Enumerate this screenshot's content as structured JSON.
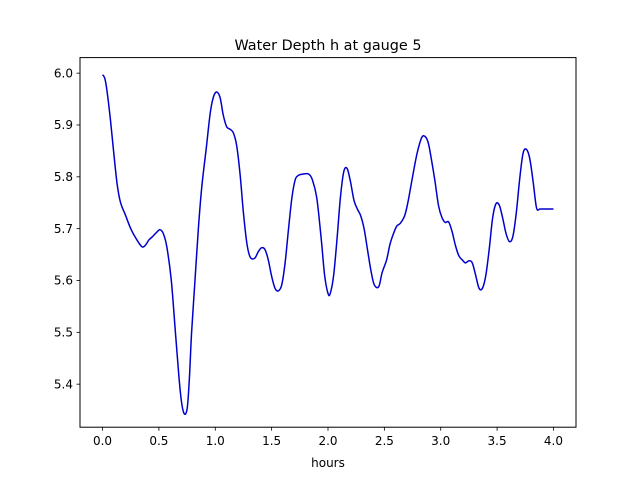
{
  "chart_data": {
    "type": "line",
    "title": "Water Depth h at gauge 5",
    "xlabel": "hours",
    "ylabel": "",
    "xlim": [
      -0.2,
      4.2
    ],
    "ylim": [
      5.317,
      6.03
    ],
    "xticks": [
      0.0,
      0.5,
      1.0,
      1.5,
      2.0,
      2.5,
      3.0,
      3.5,
      4.0
    ],
    "xtick_labels": [
      "0.0",
      "0.5",
      "1.0",
      "1.5",
      "2.0",
      "2.5",
      "3.0",
      "3.5",
      "4.0"
    ],
    "yticks": [
      5.4,
      5.5,
      5.6,
      5.7,
      5.8,
      5.9,
      6.0
    ],
    "ytick_labels": [
      "5.4",
      "5.5",
      "5.6",
      "5.7",
      "5.8",
      "5.9",
      "6.0"
    ],
    "grid": false,
    "series": [
      {
        "name": "",
        "color": "#0000cc",
        "x": [
          0.0,
          0.02,
          0.04,
          0.07,
          0.1,
          0.13,
          0.16,
          0.2,
          0.25,
          0.3,
          0.35,
          0.38,
          0.41,
          0.44,
          0.48,
          0.51,
          0.54,
          0.57,
          0.61,
          0.65,
          0.69,
          0.72,
          0.75,
          0.77,
          0.79,
          0.82,
          0.85,
          0.88,
          0.92,
          0.96,
          1.0,
          1.04,
          1.07,
          1.1,
          1.13,
          1.16,
          1.19,
          1.22,
          1.25,
          1.28,
          1.31,
          1.35,
          1.38,
          1.41,
          1.44,
          1.47,
          1.5,
          1.53,
          1.56,
          1.59,
          1.62,
          1.65,
          1.68,
          1.71,
          1.74,
          1.77,
          1.8,
          1.83,
          1.86,
          1.9,
          1.94,
          1.97,
          2.0,
          2.02,
          2.05,
          2.08,
          2.11,
          2.14,
          2.17,
          2.2,
          2.23,
          2.26,
          2.29,
          2.32,
          2.35,
          2.38,
          2.41,
          2.45,
          2.48,
          2.52,
          2.55,
          2.58,
          2.61,
          2.64,
          2.68,
          2.71,
          2.75,
          2.79,
          2.83,
          2.86,
          2.89,
          2.92,
          2.95,
          2.98,
          3.01,
          3.04,
          3.07,
          3.1,
          3.13,
          3.16,
          3.19,
          3.22,
          3.25,
          3.28,
          3.31,
          3.34,
          3.37,
          3.4,
          3.43,
          3.46,
          3.49,
          3.52,
          3.55,
          3.58,
          3.61,
          3.64,
          3.67,
          3.7,
          3.73,
          3.76,
          3.79,
          3.82,
          3.85,
          3.88,
          3.91,
          3.94,
          3.97,
          4.0
        ],
        "y": [
          5.997,
          5.99,
          5.965,
          5.91,
          5.845,
          5.785,
          5.75,
          5.728,
          5.7,
          5.68,
          5.665,
          5.668,
          5.678,
          5.684,
          5.693,
          5.698,
          5.69,
          5.665,
          5.6,
          5.49,
          5.385,
          5.345,
          5.352,
          5.41,
          5.5,
          5.6,
          5.7,
          5.78,
          5.855,
          5.93,
          5.962,
          5.955,
          5.92,
          5.897,
          5.892,
          5.885,
          5.86,
          5.805,
          5.73,
          5.672,
          5.645,
          5.643,
          5.655,
          5.663,
          5.66,
          5.64,
          5.608,
          5.585,
          5.58,
          5.592,
          5.635,
          5.7,
          5.76,
          5.795,
          5.803,
          5.805,
          5.806,
          5.805,
          5.795,
          5.76,
          5.68,
          5.61,
          5.575,
          5.575,
          5.61,
          5.68,
          5.76,
          5.81,
          5.816,
          5.79,
          5.755,
          5.738,
          5.725,
          5.7,
          5.66,
          5.62,
          5.592,
          5.588,
          5.615,
          5.64,
          5.67,
          5.69,
          5.705,
          5.71,
          5.725,
          5.752,
          5.8,
          5.845,
          5.875,
          5.878,
          5.865,
          5.83,
          5.79,
          5.745,
          5.722,
          5.712,
          5.713,
          5.695,
          5.668,
          5.648,
          5.64,
          5.634,
          5.638,
          5.634,
          5.61,
          5.585,
          5.585,
          5.61,
          5.66,
          5.72,
          5.748,
          5.745,
          5.72,
          5.69,
          5.675,
          5.685,
          5.73,
          5.795,
          5.845,
          5.853,
          5.835,
          5.79,
          5.74,
          5.738,
          5.738,
          5.738,
          5.738,
          5.738
        ]
      }
    ]
  }
}
